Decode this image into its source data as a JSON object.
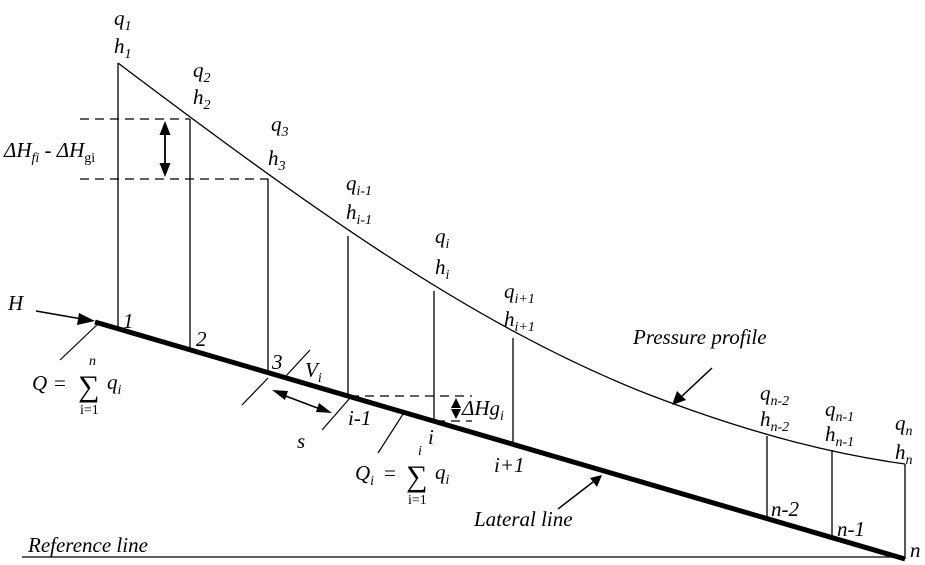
{
  "points": [
    {
      "q_base": "q",
      "q_sub": "1",
      "h_base": "h",
      "h_sub": "1",
      "node": "1"
    },
    {
      "q_base": "q",
      "q_sub": "2",
      "h_base": "h",
      "h_sub": "2",
      "node": "2"
    },
    {
      "q_base": "q",
      "q_sub": "3",
      "h_base": "h",
      "h_sub": "3",
      "node": "3"
    },
    {
      "q_base": "q",
      "q_sub": "i-1",
      "h_base": "h",
      "h_sub": "i-1",
      "node": "i-1"
    },
    {
      "q_base": "q",
      "q_sub": "i",
      "h_base": "h",
      "h_sub": "i",
      "node": "i"
    },
    {
      "q_base": "q",
      "q_sub": "i+1",
      "h_base": "h",
      "h_sub": "i+1",
      "node": "i+1"
    },
    {
      "q_base": "q",
      "q_sub": "n-2",
      "h_base": "h",
      "h_sub": "n-2",
      "node": "n-2"
    },
    {
      "q_base": "q",
      "q_sub": "n-1",
      "h_base": "h",
      "h_sub": "n-1",
      "node": "n-1"
    },
    {
      "q_base": "q",
      "q_sub": "n",
      "h_base": "h",
      "h_sub": "n",
      "node": "n"
    }
  ],
  "inlet_label": "H",
  "head_loss": {
    "base1": "ΔH",
    "sub1": "fi",
    "sep": " - ",
    "base2": "ΔH",
    "sub2": "gi"
  },
  "elevation_drop": {
    "base": "ΔHg",
    "sub": "i"
  },
  "velocity": {
    "base": "V",
    "sub": "i"
  },
  "spacing": "s",
  "total_flow": {
    "lhs": "Q",
    "eq": "=",
    "sum": "∑",
    "upper": "n",
    "lower": "i=1",
    "term": "q",
    "term_sub": "i"
  },
  "segment_flow": {
    "lhs": "Q",
    "lhs_sub": "i",
    "eq": "=",
    "sum": "∑",
    "upper": "i",
    "lower": "i=1",
    "term": "q",
    "term_sub": "i"
  },
  "pressure_profile_label": "Pressure profile",
  "lateral_line_label": "Lateral line",
  "reference_line_label": "Reference line"
}
